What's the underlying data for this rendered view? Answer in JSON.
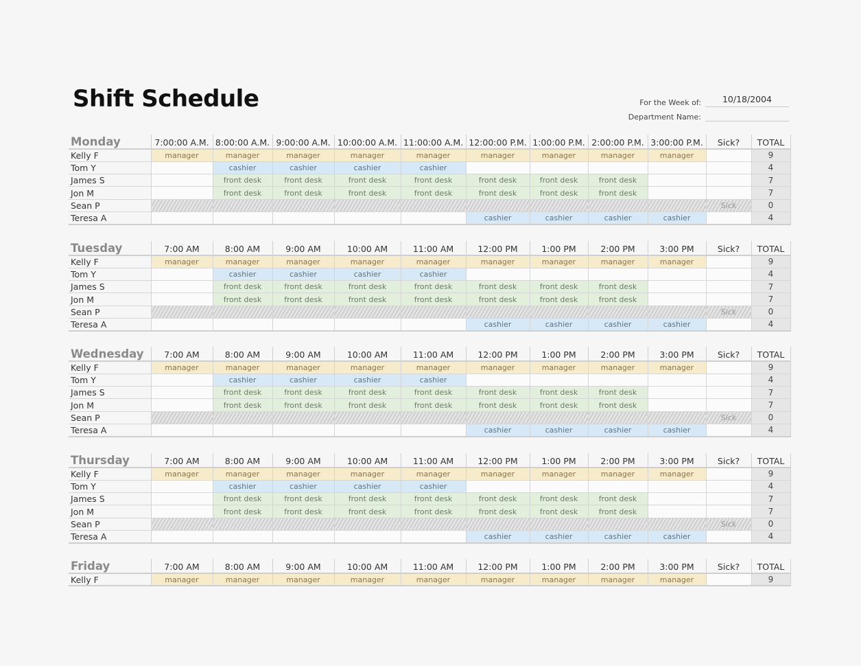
{
  "title": "Shift Schedule",
  "meta": {
    "week_label": "For the Week of:",
    "week_value": "10/18/2004",
    "dept_label": "Department Name:",
    "dept_value": ""
  },
  "colors": {
    "manager": "#f6ebcb",
    "cashier": "#d7e9f6",
    "front_desk": "#e3efdd",
    "sick": "#d8d8d8",
    "total": "#e6e6e6"
  },
  "days": [
    {
      "name": "Monday",
      "times": [
        "7:00:00 A.M.",
        "8:00:00 A.M.",
        "9:00:00 A.M.",
        "10:00:00 A.M.",
        "11:00:00 A.M.",
        "12:00:00 P.M.",
        "1:00:00 P.M.",
        "2:00:00 P.M.",
        "3:00:00 P.M."
      ],
      "sick_header": "Sick?",
      "total_header": "TOTAL",
      "rows": [
        {
          "name": "Kelly F",
          "shifts": [
            "manager",
            "manager",
            "manager",
            "manager",
            "manager",
            "manager",
            "manager",
            "manager",
            "manager"
          ],
          "sick": "",
          "total": "9"
        },
        {
          "name": "Tom Y",
          "shifts": [
            "",
            "cashier",
            "cashier",
            "cashier",
            "cashier",
            "",
            "",
            "",
            ""
          ],
          "sick": "",
          "total": "4"
        },
        {
          "name": "James S",
          "shifts": [
            "",
            "front desk",
            "front desk",
            "front desk",
            "front desk",
            "front desk",
            "front desk",
            "front desk",
            ""
          ],
          "sick": "",
          "total": "7"
        },
        {
          "name": "Jon M",
          "shifts": [
            "",
            "front desk",
            "front desk",
            "front desk",
            "front desk",
            "front desk",
            "front desk",
            "front desk",
            ""
          ],
          "sick": "",
          "total": "7"
        },
        {
          "name": "Sean P",
          "shifts": [
            "",
            "",
            "",
            "",
            "",
            "",
            "",
            "",
            ""
          ],
          "sick": "Sick",
          "total": "0"
        },
        {
          "name": "Teresa A",
          "shifts": [
            "",
            "",
            "",
            "",
            "",
            "cashier",
            "cashier",
            "cashier",
            "cashier"
          ],
          "sick": "",
          "total": "4"
        }
      ]
    },
    {
      "name": "Tuesday",
      "times": [
        "7:00 AM",
        "8:00 AM",
        "9:00 AM",
        "10:00 AM",
        "11:00 AM",
        "12:00 PM",
        "1:00 PM",
        "2:00 PM",
        "3:00 PM"
      ],
      "sick_header": "Sick?",
      "total_header": "TOTAL",
      "rows": [
        {
          "name": "Kelly F",
          "shifts": [
            "manager",
            "manager",
            "manager",
            "manager",
            "manager",
            "manager",
            "manager",
            "manager",
            "manager"
          ],
          "sick": "",
          "total": "9"
        },
        {
          "name": "Tom Y",
          "shifts": [
            "",
            "cashier",
            "cashier",
            "cashier",
            "cashier",
            "",
            "",
            "",
            ""
          ],
          "sick": "",
          "total": "4"
        },
        {
          "name": "James S",
          "shifts": [
            "",
            "front desk",
            "front desk",
            "front desk",
            "front desk",
            "front desk",
            "front desk",
            "front desk",
            ""
          ],
          "sick": "",
          "total": "7"
        },
        {
          "name": "Jon M",
          "shifts": [
            "",
            "front desk",
            "front desk",
            "front desk",
            "front desk",
            "front desk",
            "front desk",
            "front desk",
            ""
          ],
          "sick": "",
          "total": "7"
        },
        {
          "name": "Sean P",
          "shifts": [
            "",
            "",
            "",
            "",
            "",
            "",
            "",
            "",
            ""
          ],
          "sick": "Sick",
          "total": "0"
        },
        {
          "name": "Teresa A",
          "shifts": [
            "",
            "",
            "",
            "",
            "",
            "cashier",
            "cashier",
            "cashier",
            "cashier"
          ],
          "sick": "",
          "total": "4"
        }
      ]
    },
    {
      "name": "Wednesday",
      "times": [
        "7:00 AM",
        "8:00 AM",
        "9:00 AM",
        "10:00 AM",
        "11:00 AM",
        "12:00 PM",
        "1:00 PM",
        "2:00 PM",
        "3:00 PM"
      ],
      "sick_header": "Sick?",
      "total_header": "TOTAL",
      "rows": [
        {
          "name": "Kelly F",
          "shifts": [
            "manager",
            "manager",
            "manager",
            "manager",
            "manager",
            "manager",
            "manager",
            "manager",
            "manager"
          ],
          "sick": "",
          "total": "9"
        },
        {
          "name": "Tom Y",
          "shifts": [
            "",
            "cashier",
            "cashier",
            "cashier",
            "cashier",
            "",
            "",
            "",
            ""
          ],
          "sick": "",
          "total": "4"
        },
        {
          "name": "James S",
          "shifts": [
            "",
            "front desk",
            "front desk",
            "front desk",
            "front desk",
            "front desk",
            "front desk",
            "front desk",
            ""
          ],
          "sick": "",
          "total": "7"
        },
        {
          "name": "Jon M",
          "shifts": [
            "",
            "front desk",
            "front desk",
            "front desk",
            "front desk",
            "front desk",
            "front desk",
            "front desk",
            ""
          ],
          "sick": "",
          "total": "7"
        },
        {
          "name": "Sean P",
          "shifts": [
            "",
            "",
            "",
            "",
            "",
            "",
            "",
            "",
            ""
          ],
          "sick": "Sick",
          "total": "0"
        },
        {
          "name": "Teresa A",
          "shifts": [
            "",
            "",
            "",
            "",
            "",
            "cashier",
            "cashier",
            "cashier",
            "cashier"
          ],
          "sick": "",
          "total": "4"
        }
      ]
    },
    {
      "name": "Thursday",
      "times": [
        "7:00 AM",
        "8:00 AM",
        "9:00 AM",
        "10:00 AM",
        "11:00 AM",
        "12:00 PM",
        "1:00 PM",
        "2:00 PM",
        "3:00 PM"
      ],
      "sick_header": "Sick?",
      "total_header": "TOTAL",
      "rows": [
        {
          "name": "Kelly F",
          "shifts": [
            "manager",
            "manager",
            "manager",
            "manager",
            "manager",
            "manager",
            "manager",
            "manager",
            "manager"
          ],
          "sick": "",
          "total": "9"
        },
        {
          "name": "Tom Y",
          "shifts": [
            "",
            "cashier",
            "cashier",
            "cashier",
            "cashier",
            "",
            "",
            "",
            ""
          ],
          "sick": "",
          "total": "4"
        },
        {
          "name": "James S",
          "shifts": [
            "",
            "front desk",
            "front desk",
            "front desk",
            "front desk",
            "front desk",
            "front desk",
            "front desk",
            ""
          ],
          "sick": "",
          "total": "7"
        },
        {
          "name": "Jon M",
          "shifts": [
            "",
            "front desk",
            "front desk",
            "front desk",
            "front desk",
            "front desk",
            "front desk",
            "front desk",
            ""
          ],
          "sick": "",
          "total": "7"
        },
        {
          "name": "Sean P",
          "shifts": [
            "",
            "",
            "",
            "",
            "",
            "",
            "",
            "",
            ""
          ],
          "sick": "Sick",
          "total": "0"
        },
        {
          "name": "Teresa A",
          "shifts": [
            "",
            "",
            "",
            "",
            "",
            "cashier",
            "cashier",
            "cashier",
            "cashier"
          ],
          "sick": "",
          "total": "4"
        }
      ]
    },
    {
      "name": "Friday",
      "times": [
        "7:00 AM",
        "8:00 AM",
        "9:00 AM",
        "10:00 AM",
        "11:00 AM",
        "12:00 PM",
        "1:00 PM",
        "2:00 PM",
        "3:00 PM"
      ],
      "sick_header": "Sick?",
      "total_header": "TOTAL",
      "rows": [
        {
          "name": "Kelly F",
          "shifts": [
            "manager",
            "manager",
            "manager",
            "manager",
            "manager",
            "manager",
            "manager",
            "manager",
            "manager"
          ],
          "sick": "",
          "total": "9"
        }
      ]
    }
  ]
}
